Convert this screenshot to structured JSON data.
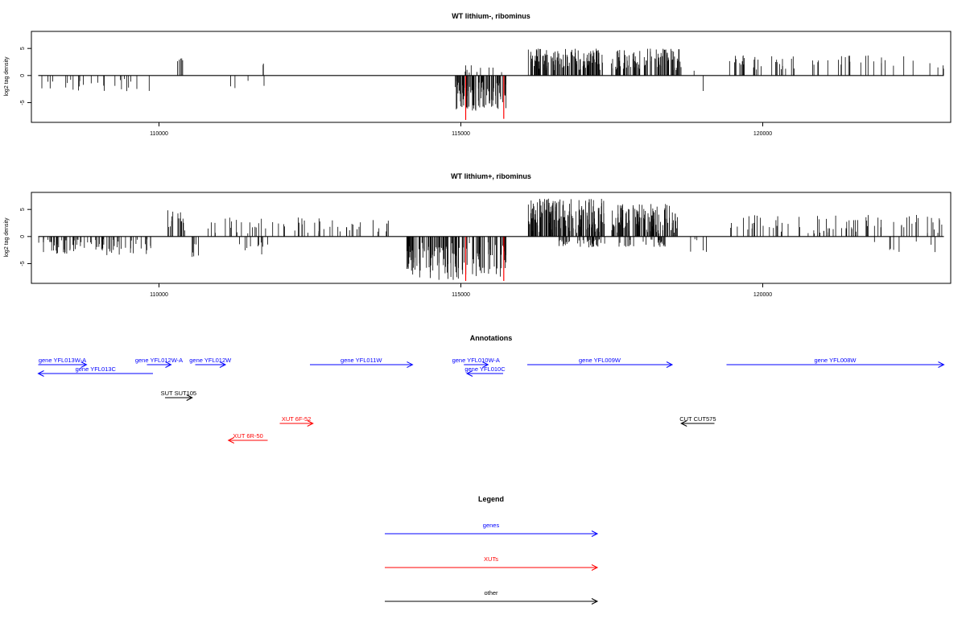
{
  "colors": {
    "genes": "#0000ff",
    "xuts": "#ff0000",
    "other": "#000000",
    "signal": "#000000",
    "highlight": "#ff0000"
  },
  "chart_data": [
    {
      "type": "bar",
      "panel": "top",
      "title": "WT lithium-, ribominus",
      "ylabel": "log2 tag density",
      "xlim": [
        107900,
        123100
      ],
      "ylim": [
        -8.5,
        8
      ],
      "xticks": [
        110000,
        115000,
        120000
      ],
      "xtick_labels": [
        "110000",
        "115000",
        "120000"
      ],
      "yticks": [
        -5,
        0,
        5
      ],
      "ytick_labels": [
        "-5",
        "0",
        "5"
      ],
      "baseline": {
        "from": 108000,
        "to": 123000,
        "y": 0
      },
      "highlight": [
        {
          "x": 115080,
          "y": -8.2
        },
        {
          "x": 115710,
          "y": -8.0
        }
      ],
      "segments": [
        {
          "from": 108000,
          "to": 109900,
          "n": 26,
          "min": -3,
          "max": -0.5,
          "seed": 11
        },
        {
          "from": 110300,
          "to": 110450,
          "n": 5,
          "min": 2.5,
          "max": 3.5,
          "seed": 12
        },
        {
          "from": 111150,
          "to": 111300,
          "n": 2,
          "min": -2.5,
          "max": -1.5,
          "seed": 13
        },
        {
          "from": 111450,
          "to": 111550,
          "n": 1,
          "min": -1.2,
          "max": -0.8,
          "seed": 14
        },
        {
          "from": 111720,
          "to": 111760,
          "n": 2,
          "min": 1.8,
          "max": 2.4,
          "seed": 15
        },
        {
          "from": 111730,
          "to": 111770,
          "n": 1,
          "min": -2.2,
          "max": -1.8,
          "seed": 16
        },
        {
          "from": 114900,
          "to": 115750,
          "n": 95,
          "min": -6.5,
          "max": -1,
          "seed": 17
        },
        {
          "from": 115000,
          "to": 115700,
          "n": 10,
          "min": 0.5,
          "max": 2,
          "seed": 18
        },
        {
          "from": 116100,
          "to": 117350,
          "n": 130,
          "min": 1,
          "max": 5,
          "seed": 19
        },
        {
          "from": 117450,
          "to": 118650,
          "n": 90,
          "min": 1,
          "max": 5,
          "seed": 20
        },
        {
          "from": 118850,
          "to": 118900,
          "n": 1,
          "min": 0.8,
          "max": 1.2,
          "seed": 21
        },
        {
          "from": 119000,
          "to": 119050,
          "n": 1,
          "min": -3,
          "max": -2.5,
          "seed": 22
        },
        {
          "from": 119400,
          "to": 123000,
          "n": 55,
          "min": 1,
          "max": 3.8,
          "seed": 23
        }
      ]
    },
    {
      "type": "bar",
      "panel": "middle",
      "title": "WT lithium+, ribominus",
      "ylabel": "log2 tag density",
      "xlim": [
        107900,
        123100
      ],
      "ylim": [
        -8.5,
        8
      ],
      "xticks": [
        110000,
        115000,
        120000
      ],
      "xtick_labels": [
        "110000",
        "115000",
        "120000"
      ],
      "yticks": [
        -5,
        0,
        5
      ],
      "ytick_labels": [
        "-5",
        "0",
        "5"
      ],
      "baseline": {
        "from": 108000,
        "to": 123000,
        "y": 0
      },
      "highlight": [
        {
          "x": 115080,
          "y": -8.2
        },
        {
          "x": 115710,
          "y": -8.2
        }
      ],
      "segments": [
        {
          "from": 108000,
          "to": 109900,
          "n": 80,
          "min": -3.5,
          "max": -0.5,
          "seed": 31
        },
        {
          "from": 110100,
          "to": 110450,
          "n": 15,
          "min": 1,
          "max": 5,
          "seed": 32
        },
        {
          "from": 110500,
          "to": 110700,
          "n": 6,
          "min": -5,
          "max": -1,
          "seed": 33
        },
        {
          "from": 110800,
          "to": 113800,
          "n": 55,
          "min": 0.5,
          "max": 3.5,
          "seed": 34
        },
        {
          "from": 111300,
          "to": 111800,
          "n": 10,
          "min": -4,
          "max": -1,
          "seed": 35
        },
        {
          "from": 114100,
          "to": 115750,
          "n": 130,
          "min": -8,
          "max": -1,
          "seed": 36
        },
        {
          "from": 116100,
          "to": 117400,
          "n": 160,
          "min": 0.5,
          "max": 7,
          "seed": 37
        },
        {
          "from": 116600,
          "to": 117400,
          "n": 40,
          "min": -2,
          "max": -0.5,
          "seed": 38
        },
        {
          "from": 117500,
          "to": 118600,
          "n": 110,
          "min": 0.5,
          "max": 6,
          "seed": 39
        },
        {
          "from": 117600,
          "to": 118400,
          "n": 30,
          "min": -2,
          "max": -0.5,
          "seed": 40
        },
        {
          "from": 118800,
          "to": 119100,
          "n": 5,
          "min": -3.5,
          "max": -0.5,
          "seed": 41
        },
        {
          "from": 119400,
          "to": 123000,
          "n": 75,
          "min": 0.5,
          "max": 4,
          "seed": 42
        },
        {
          "from": 121800,
          "to": 123000,
          "n": 8,
          "min": -3,
          "max": -0.5,
          "seed": 43
        }
      ]
    }
  ],
  "annotations": {
    "title": "Annotations",
    "xlim": [
      107900,
      123100
    ],
    "rows": 6,
    "features": [
      {
        "label": "gene YFL013W-A",
        "type": "gene",
        "strand": "+",
        "start": 108000,
        "end": 108800,
        "row": 0
      },
      {
        "label": "gene YFL013C",
        "type": "gene",
        "strand": "-",
        "start": 108000,
        "end": 109900,
        "row": 1
      },
      {
        "label": "gene YFL012W-A",
        "type": "gene",
        "strand": "+",
        "start": 109800,
        "end": 110200,
        "row": 0
      },
      {
        "label": "gene YFL012W",
        "type": "gene",
        "strand": "+",
        "start": 110600,
        "end": 111100,
        "row": 0
      },
      {
        "label": "gene YFL011W",
        "type": "gene",
        "strand": "+",
        "start": 112500,
        "end": 114200,
        "row": 0
      },
      {
        "label": "gene YFL010W-A",
        "type": "gene",
        "strand": "+",
        "start": 115050,
        "end": 115450,
        "row": 0
      },
      {
        "label": "gene YFL010C",
        "type": "gene",
        "strand": "-",
        "start": 115100,
        "end": 115700,
        "row": 1
      },
      {
        "label": "gene YFL009W",
        "type": "gene",
        "strand": "+",
        "start": 116100,
        "end": 118500,
        "row": 0
      },
      {
        "label": "gene YFL008W",
        "type": "gene",
        "strand": "+",
        "start": 119400,
        "end": 123000,
        "row": 0
      },
      {
        "label": "SUT SUT105",
        "type": "other",
        "strand": "+",
        "start": 110100,
        "end": 110550,
        "row": 3
      },
      {
        "label": "CUT CUT575",
        "type": "other",
        "strand": "-",
        "start": 118650,
        "end": 119200,
        "row": 4
      },
      {
        "label": "XUT 6F-52",
        "type": "xut",
        "strand": "+",
        "start": 112000,
        "end": 112550,
        "row": 4
      },
      {
        "label": "XUT 6R-50",
        "type": "xut",
        "strand": "-",
        "start": 111150,
        "end": 111800,
        "row": 5
      }
    ]
  },
  "legend": {
    "title": "Legend",
    "items": [
      {
        "label": "genes",
        "type": "gene"
      },
      {
        "label": "XUTs",
        "type": "xut"
      },
      {
        "label": "other",
        "type": "other"
      }
    ]
  }
}
